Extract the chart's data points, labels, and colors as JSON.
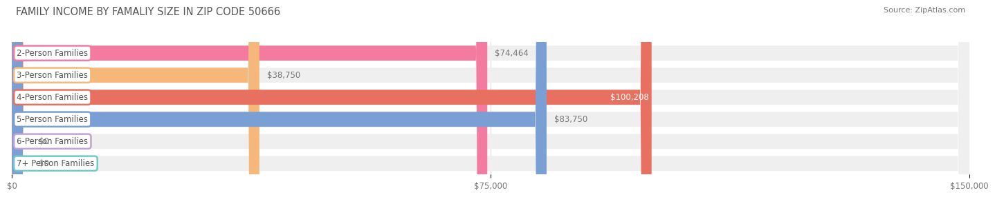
{
  "title": "FAMILY INCOME BY FAMALIY SIZE IN ZIP CODE 50666",
  "source": "Source: ZipAtlas.com",
  "categories": [
    "2-Person Families",
    "3-Person Families",
    "4-Person Families",
    "5-Person Families",
    "6-Person Families",
    "7+ Person Families"
  ],
  "values": [
    74464,
    38750,
    100208,
    83750,
    0,
    0
  ],
  "bar_colors": [
    "#F47BA0",
    "#F5B87A",
    "#E87060",
    "#7A9FD4",
    "#C4A0D4",
    "#72C9C9"
  ],
  "bar_bg_color": "#EFEFEF",
  "xlim": [
    0,
    150000
  ],
  "xticks": [
    0,
    75000,
    150000
  ],
  "xtick_labels": [
    "$0",
    "$75,000",
    "$150,000"
  ],
  "value_labels": [
    "$74,464",
    "$38,750",
    "$100,208",
    "$83,750",
    "$0",
    "$0"
  ],
  "title_fontsize": 10.5,
  "source_fontsize": 8,
  "tick_fontsize": 8.5,
  "bar_label_fontsize": 8.5,
  "category_fontsize": 8.5,
  "bar_height": 0.68,
  "background_color": "#FFFFFF",
  "grid_color": "#DDDDDD",
  "text_color": "#777777",
  "label_text_color": "#555555"
}
